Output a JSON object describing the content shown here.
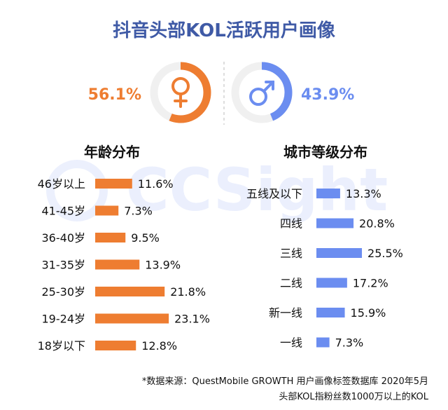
{
  "title": "抖音头部KOL活跃用户画像",
  "watermark": "CCSight",
  "colors": {
    "female": "#ee7d31",
    "male": "#6b8df0",
    "title_color": "#3f5aa6",
    "text": "#111111",
    "ring_track": "#f0f0f0"
  },
  "gender": {
    "female": {
      "percent_label": "56.1%",
      "value": 56.1,
      "icon": "female-symbol-icon"
    },
    "male": {
      "percent_label": "43.9%",
      "value": 43.9,
      "icon": "male-symbol-icon"
    }
  },
  "chart_data": [
    {
      "type": "bar",
      "orientation": "horizontal",
      "title": "年龄分布",
      "categories": [
        "46岁以上",
        "41-45岁",
        "36-40岁",
        "31-35岁",
        "25-30岁",
        "19-24岁",
        "18岁以下"
      ],
      "values": [
        11.6,
        7.3,
        9.5,
        13.9,
        21.8,
        23.1,
        12.8
      ],
      "value_labels": [
        "11.6%",
        "7.3%",
        "9.5%",
        "13.9%",
        "21.8%",
        "23.1%",
        "12.8%"
      ],
      "color": "#ee7d31",
      "grid": false
    },
    {
      "type": "bar",
      "orientation": "horizontal",
      "title": "城市等级分布",
      "categories": [
        "五线及以下",
        "四线",
        "三线",
        "二线",
        "新一线",
        "一线"
      ],
      "values": [
        13.3,
        20.8,
        25.5,
        17.2,
        15.9,
        7.3
      ],
      "value_labels": [
        "13.3%",
        "20.8%",
        "25.5%",
        "17.2%",
        "15.9%",
        "7.3%"
      ],
      "color": "#6b8df0",
      "grid": false
    }
  ],
  "footnote": {
    "line1": "*数据来源：QuestMobile GROWTH 用户画像标签数据库 2020年5月",
    "line2": "头部KOL指粉丝数1000万以上的KOL"
  }
}
